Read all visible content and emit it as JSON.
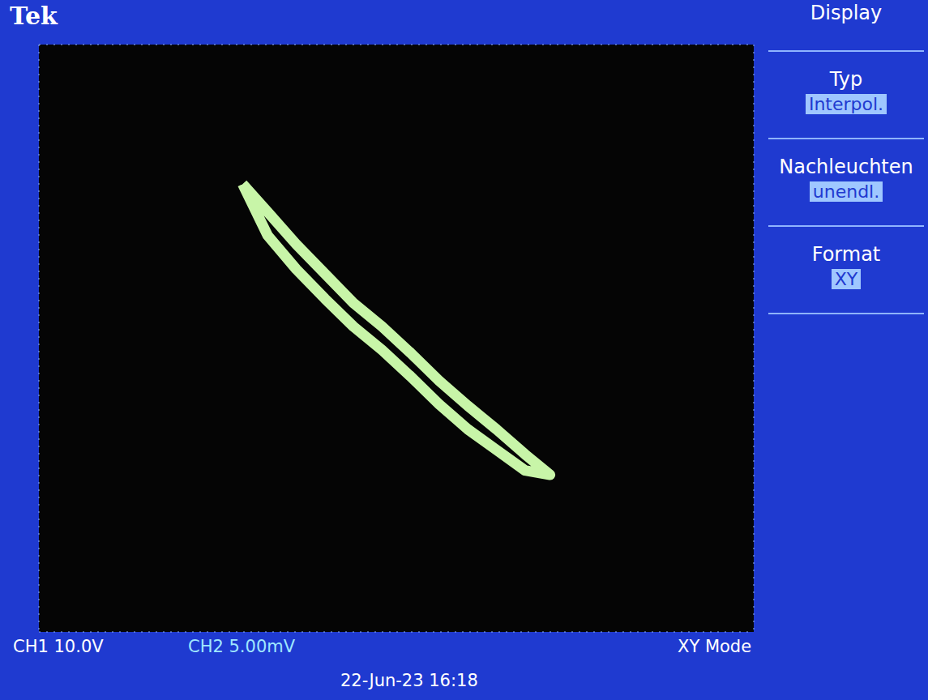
{
  "brand": "Tek",
  "menu": {
    "title": "Display",
    "items": [
      {
        "label": "Typ",
        "value": "Interpol."
      },
      {
        "label": "Nachleuchten",
        "value": "unendl."
      },
      {
        "label": "Format",
        "value": "XY"
      }
    ]
  },
  "chart_data": {
    "type": "line",
    "x_label": "CH1 10.0V",
    "y_label": "CH2 5.00mV",
    "mode_label": "XY Mode",
    "timestamp": "22-Jun-23 16:18",
    "x": [
      -21.5,
      -18,
      -14,
      -10,
      -6,
      -2,
      2,
      6,
      10,
      14,
      18,
      21.5,
      18,
      14,
      10,
      6,
      2,
      -2,
      -6,
      -10,
      -14,
      -18,
      -21.5
    ],
    "values": [
      10.5,
      8.6,
      6.4,
      4.4,
      2.4,
      0.8,
      -1.0,
      -2.9,
      -4.6,
      -6.2,
      -7.9,
      -9.3,
      -9.0,
      -7.6,
      -6.2,
      -4.5,
      -2.6,
      -0.8,
      0.8,
      2.7,
      4.7,
      7.0,
      10.5
    ],
    "color": "#c8f5a8",
    "xlim": [
      -50,
      50
    ],
    "xticks": [
      -50,
      -40,
      -30,
      -20,
      -10,
      0,
      10,
      20,
      30,
      40,
      50
    ],
    "ylim": [
      -20,
      20
    ],
    "yticks": [
      -20,
      -15,
      -10,
      -5,
      0,
      5,
      10,
      15,
      20
    ],
    "grid": true,
    "tick_labels": false,
    "marker": "none",
    "line_style": "solid"
  }
}
